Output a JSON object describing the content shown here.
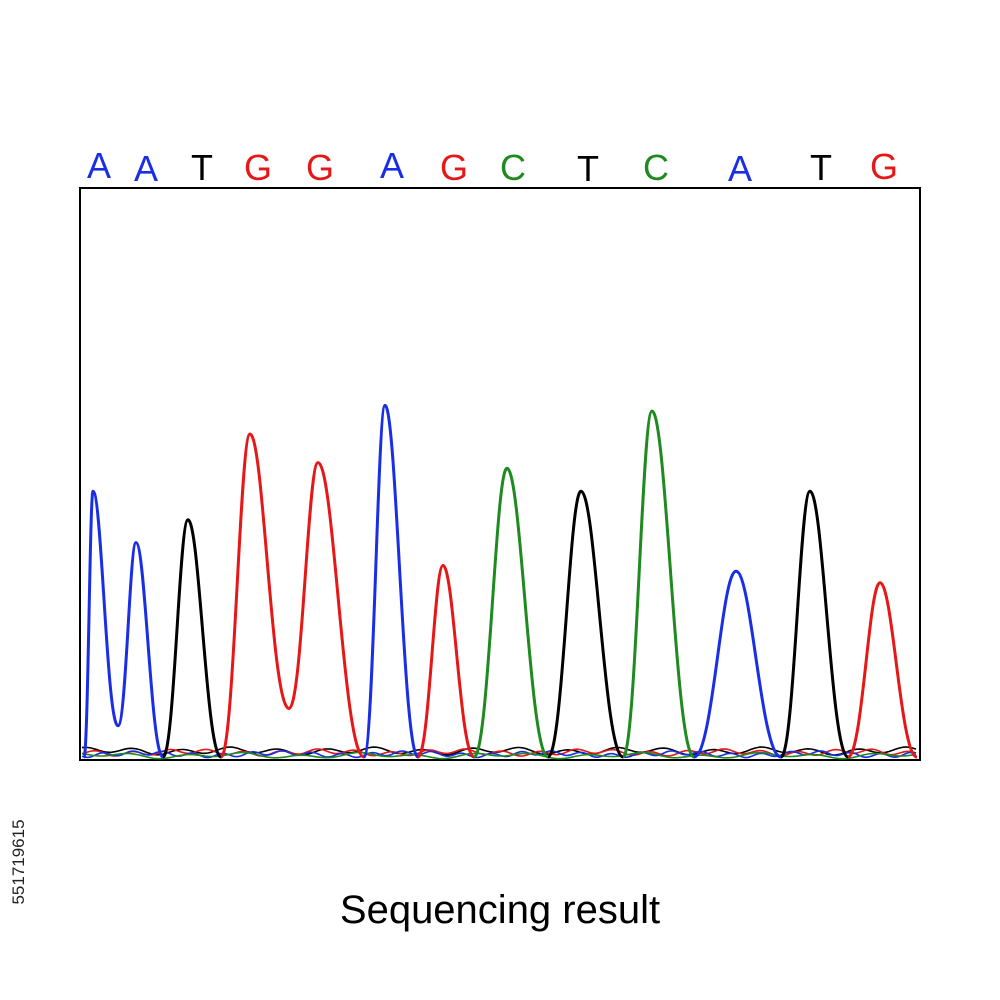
{
  "colors": {
    "A": "#1a2ee6",
    "C": "#1f8a1f",
    "G": "#e61717",
    "T": "#000000"
  },
  "bases": [
    {
      "letter": "A",
      "peak": 0.47
    },
    {
      "letter": "A",
      "peak": 0.38
    },
    {
      "letter": "T",
      "peak": 0.42
    },
    {
      "letter": "G",
      "peak": 0.57
    },
    {
      "letter": "G",
      "peak": 0.52
    },
    {
      "letter": "A",
      "peak": 0.62
    },
    {
      "letter": "G",
      "peak": 0.34
    },
    {
      "letter": "C",
      "peak": 0.51
    },
    {
      "letter": "T",
      "peak": 0.47
    },
    {
      "letter": "C",
      "peak": 0.61
    },
    {
      "letter": "A",
      "peak": 0.33
    },
    {
      "letter": "T",
      "peak": 0.47
    },
    {
      "letter": "G",
      "peak": 0.31
    }
  ],
  "caption": "Sequencing result",
  "stock_id": "551719615"
}
